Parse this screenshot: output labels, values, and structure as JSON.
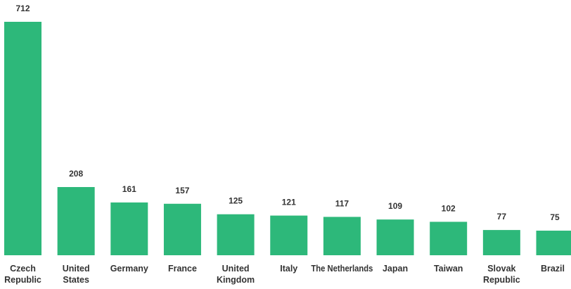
{
  "chart_data": {
    "type": "bar",
    "categories": [
      [
        "Czech",
        "Republic"
      ],
      [
        "United",
        "States"
      ],
      [
        "Germany"
      ],
      [
        "France"
      ],
      [
        "United",
        "Kingdom"
      ],
      [
        "Italy"
      ],
      [
        "The Netherlands"
      ],
      [
        "Japan"
      ],
      [
        "Taiwan"
      ],
      [
        "Slovak",
        "Republic"
      ],
      [
        "Brazil"
      ]
    ],
    "values": [
      712,
      208,
      161,
      157,
      125,
      121,
      117,
      109,
      102,
      77,
      75
    ],
    "value_labels": [
      "712",
      "208",
      "161",
      "157",
      "125",
      "121",
      "117",
      "109",
      "102",
      "77",
      "75"
    ],
    "ylim": [
      0,
      712
    ],
    "grid": false,
    "bar_color": "#2db87a",
    "label_color": "#333333"
  }
}
